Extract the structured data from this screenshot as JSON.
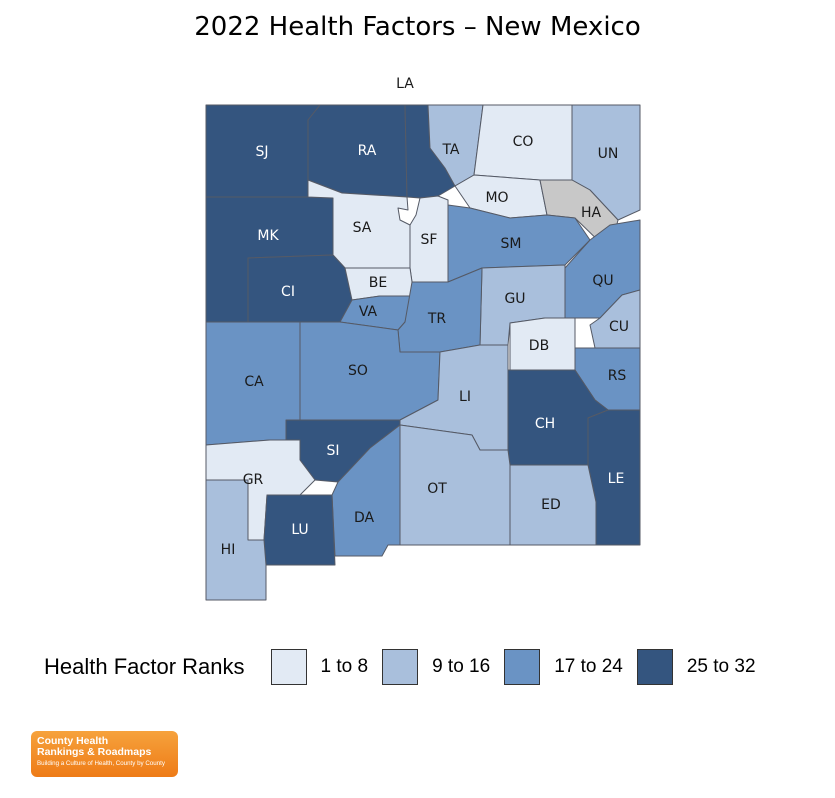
{
  "title": "2022 Health Factors – New Mexico",
  "legend": {
    "title": "Health Factor Ranks",
    "items": [
      {
        "label": "1 to 8",
        "color": "#e2eaf4"
      },
      {
        "label": "9 to 16",
        "color": "#a9bfdc"
      },
      {
        "label": "17 to 24",
        "color": "#6a93c4"
      },
      {
        "label": "25 to 32",
        "color": "#34557f"
      }
    ]
  },
  "no_data_color": "#c8c8c8",
  "counties": [
    {
      "abbr": "SJ",
      "tier": 4
    },
    {
      "abbr": "RA",
      "tier": 4
    },
    {
      "abbr": "LA",
      "tier": 4
    },
    {
      "abbr": "TA",
      "tier": 2
    },
    {
      "abbr": "CO",
      "tier": 1
    },
    {
      "abbr": "UN",
      "tier": 2
    },
    {
      "abbr": "MO",
      "tier": 1
    },
    {
      "abbr": "HA",
      "tier": 0
    },
    {
      "abbr": "MK",
      "tier": 4
    },
    {
      "abbr": "SA",
      "tier": 1
    },
    {
      "abbr": "SF",
      "tier": 1
    },
    {
      "abbr": "SM",
      "tier": 3
    },
    {
      "abbr": "CI",
      "tier": 4
    },
    {
      "abbr": "BE",
      "tier": 1
    },
    {
      "abbr": "QU",
      "tier": 3
    },
    {
      "abbr": "GU",
      "tier": 2
    },
    {
      "abbr": "VA",
      "tier": 3
    },
    {
      "abbr": "TR",
      "tier": 3
    },
    {
      "abbr": "CU",
      "tier": 2
    },
    {
      "abbr": "DB",
      "tier": 1
    },
    {
      "abbr": "CA",
      "tier": 3
    },
    {
      "abbr": "SO",
      "tier": 3
    },
    {
      "abbr": "RS",
      "tier": 3
    },
    {
      "abbr": "LI",
      "tier": 2
    },
    {
      "abbr": "CH",
      "tier": 4
    },
    {
      "abbr": "SI",
      "tier": 4
    },
    {
      "abbr": "LE",
      "tier": 4
    },
    {
      "abbr": "GR",
      "tier": 1
    },
    {
      "abbr": "OT",
      "tier": 2
    },
    {
      "abbr": "DA",
      "tier": 3
    },
    {
      "abbr": "ED",
      "tier": 2
    },
    {
      "abbr": "LU",
      "tier": 4
    },
    {
      "abbr": "HI",
      "tier": 2
    }
  ],
  "logo": {
    "line1": "County Health",
    "line2": "Rankings & Roadmaps",
    "tagline": "Building a Culture of Health, County by County"
  }
}
